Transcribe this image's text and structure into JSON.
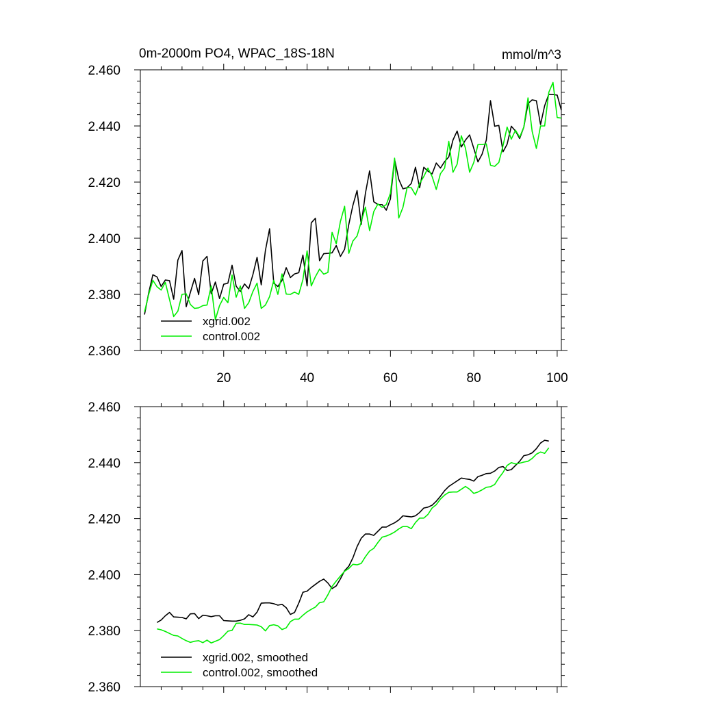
{
  "chart_data": [
    {
      "type": "line",
      "title": "0m-2000m PO4, WPAC_18S-18N",
      "units": "mmol/m^3",
      "xlabel": "",
      "ylabel": "",
      "xlim": [
        0,
        101
      ],
      "ylim": [
        2.36,
        2.46
      ],
      "xticks": [
        20,
        40,
        60,
        80,
        100
      ],
      "yticks": [
        2.36,
        2.38,
        2.4,
        2.42,
        2.44,
        2.46
      ],
      "ytick_labels": [
        "2.360",
        "2.380",
        "2.400",
        "2.420",
        "2.440",
        "2.460"
      ],
      "show_xtick_labels": true,
      "grid": false,
      "legend": "bottom-left",
      "series": [
        {
          "name": "xgrid.002",
          "color": "#000000",
          "x": [
            1,
            2,
            3,
            4,
            5,
            6,
            7,
            8,
            9,
            10,
            11,
            12,
            13,
            14,
            15,
            16,
            17,
            18,
            19,
            20,
            21,
            22,
            23,
            24,
            25,
            26,
            27,
            28,
            29,
            30,
            31,
            32,
            33,
            34,
            35,
            36,
            37,
            38,
            39,
            40,
            41,
            42,
            43,
            44,
            45,
            46,
            47,
            48,
            49,
            50,
            51,
            52,
            53,
            54,
            55,
            56,
            57,
            58,
            59,
            60,
            61,
            62,
            63,
            64,
            65,
            66,
            67,
            68,
            69,
            70,
            71,
            72,
            73,
            74,
            75,
            76,
            77,
            78,
            79,
            80,
            81,
            82,
            83,
            84,
            85,
            86,
            87,
            88,
            89,
            90,
            91,
            92,
            93,
            94,
            95,
            96,
            97,
            98,
            99,
            100,
            101
          ],
          "values": [
            2.3728,
            2.3805,
            2.387,
            2.3862,
            2.3828,
            2.3851,
            2.3849,
            2.3783,
            2.3922,
            2.3956,
            2.3756,
            2.3807,
            2.3857,
            2.3799,
            2.3919,
            2.3935,
            2.3802,
            2.3844,
            2.3785,
            2.3836,
            2.384,
            2.3904,
            2.3829,
            2.381,
            2.3837,
            2.382,
            2.387,
            2.3932,
            2.3834,
            2.3956,
            2.4034,
            2.384,
            2.3828,
            2.385,
            2.3895,
            2.386,
            2.3873,
            2.3877,
            2.394,
            2.383,
            2.4055,
            2.4071,
            2.392,
            2.3945,
            2.3946,
            2.3948,
            2.3974,
            2.3935,
            2.3961,
            2.4049,
            2.4117,
            2.417,
            2.4049,
            2.416,
            2.424,
            2.413,
            2.412,
            2.412,
            2.41,
            2.414,
            2.4281,
            2.421,
            2.4176,
            2.418,
            2.4195,
            2.4253,
            2.418,
            2.4253,
            2.4239,
            2.4229,
            2.4268,
            2.425,
            2.4273,
            2.429,
            2.435,
            2.4382,
            2.4325,
            2.435,
            2.4368,
            2.432,
            2.4272,
            2.43,
            2.435,
            2.449,
            2.4399,
            2.4402,
            2.4308,
            2.4335,
            2.4399,
            2.4382,
            2.4355,
            2.4396,
            2.448,
            2.4493,
            2.449,
            2.4405,
            2.4472,
            2.4513,
            2.4512,
            2.451,
            2.4456
          ]
        },
        {
          "name": "control.002",
          "color": "#00ee00",
          "x": [
            1,
            2,
            3,
            4,
            5,
            6,
            7,
            8,
            9,
            10,
            11,
            12,
            13,
            14,
            15,
            16,
            17,
            18,
            19,
            20,
            21,
            22,
            23,
            24,
            25,
            26,
            27,
            28,
            29,
            30,
            31,
            32,
            33,
            34,
            35,
            36,
            37,
            38,
            39,
            40,
            41,
            42,
            43,
            44,
            45,
            46,
            47,
            48,
            49,
            50,
            51,
            52,
            53,
            54,
            55,
            56,
            57,
            58,
            59,
            60,
            61,
            62,
            63,
            64,
            65,
            66,
            67,
            68,
            69,
            70,
            71,
            72,
            73,
            74,
            75,
            76,
            77,
            78,
            79,
            80,
            81,
            82,
            83,
            84,
            85,
            86,
            87,
            88,
            89,
            90,
            91,
            92,
            93,
            94,
            95,
            96,
            97,
            98,
            99,
            100,
            101
          ],
          "values": [
            2.3737,
            2.38,
            2.385,
            2.3827,
            2.3815,
            2.3843,
            2.3782,
            2.3721,
            2.374,
            2.38,
            2.3802,
            2.3764,
            2.375,
            2.3752,
            2.376,
            2.3762,
            2.383,
            2.371,
            2.376,
            2.3789,
            2.377,
            2.3869,
            2.379,
            2.383,
            2.375,
            2.377,
            2.381,
            2.384,
            2.375,
            2.3762,
            2.3792,
            2.385,
            2.38,
            2.3873,
            2.3801,
            2.38,
            2.3808,
            2.38,
            2.3853,
            2.3955,
            2.383,
            2.3863,
            2.389,
            2.3872,
            2.3878,
            2.4021,
            2.398,
            2.406,
            2.4114,
            2.3946,
            2.399,
            2.4008,
            2.4059,
            2.4111,
            2.4027,
            2.4095,
            2.4122,
            2.411,
            2.412,
            2.416,
            2.4285,
            2.4072,
            2.411,
            2.418,
            2.418,
            2.4154,
            2.4195,
            2.422,
            2.425,
            2.422,
            2.4174,
            2.423,
            2.425,
            2.4345,
            2.4235,
            2.4264,
            2.4365,
            2.432,
            2.4235,
            2.427,
            2.4334,
            2.4334,
            2.4336,
            2.426,
            2.4256,
            2.427,
            2.433,
            2.4396,
            2.4353,
            2.4385,
            2.436,
            2.4396,
            2.45,
            2.438,
            2.432,
            2.44,
            2.44,
            2.452,
            2.4555,
            2.443,
            2.4428
          ]
        }
      ]
    },
    {
      "type": "line",
      "title": "",
      "xlabel": "",
      "ylabel": "",
      "xlim": [
        0,
        101
      ],
      "ylim": [
        2.36,
        2.46
      ],
      "xticks": [
        20,
        40,
        60,
        80,
        100
      ],
      "yticks": [
        2.36,
        2.38,
        2.4,
        2.42,
        2.44,
        2.46
      ],
      "ytick_labels": [
        "2.360",
        "2.380",
        "2.400",
        "2.420",
        "2.440",
        "2.460"
      ],
      "show_xtick_labels": false,
      "grid": false,
      "legend": "bottom-left",
      "series": [
        {
          "name": "xgrid.002, smoothed",
          "color": "#000000",
          "x": [
            4,
            5,
            6,
            7,
            8,
            9,
            10,
            11,
            12,
            13,
            14,
            15,
            16,
            17,
            18,
            19,
            20,
            21,
            22,
            23,
            24,
            25,
            26,
            27,
            28,
            29,
            30,
            31,
            32,
            33,
            34,
            35,
            36,
            37,
            38,
            39,
            40,
            41,
            42,
            43,
            44,
            45,
            46,
            47,
            48,
            49,
            50,
            51,
            52,
            53,
            54,
            55,
            56,
            57,
            58,
            59,
            60,
            61,
            62,
            63,
            64,
            65,
            66,
            67,
            68,
            69,
            70,
            71,
            72,
            73,
            74,
            75,
            76,
            77,
            78,
            79,
            80,
            81,
            82,
            83,
            84,
            85,
            86,
            87,
            88,
            89,
            90,
            91,
            92,
            93,
            94,
            95,
            96,
            97,
            98
          ],
          "values": [
            2.3829,
            2.3838,
            2.3853,
            2.3865,
            2.3849,
            2.3848,
            2.3847,
            2.3842,
            2.386,
            2.3861,
            2.3843,
            2.3855,
            2.3853,
            2.385,
            2.3853,
            2.3853,
            2.3836,
            2.3835,
            2.3834,
            2.3834,
            2.3837,
            2.3842,
            2.3857,
            2.3849,
            2.3866,
            2.3898,
            2.3899,
            2.3899,
            2.3896,
            2.3891,
            2.3894,
            2.3882,
            2.3858,
            2.3865,
            2.3898,
            2.3937,
            2.3941,
            2.3954,
            2.3965,
            2.3976,
            2.3984,
            2.397,
            2.395,
            2.396,
            2.3985,
            2.4014,
            2.403,
            2.406,
            2.41,
            2.413,
            2.4145,
            2.4145,
            2.414,
            2.4155,
            2.417,
            2.417,
            2.4178,
            2.4185,
            2.4195,
            2.421,
            2.4208,
            2.4206,
            2.421,
            2.4222,
            2.4238,
            2.4241,
            2.4248,
            2.4262,
            2.428,
            2.43,
            2.4315,
            2.4325,
            2.4335,
            2.4345,
            2.4342,
            2.434,
            2.4334,
            2.435,
            2.4355,
            2.4361,
            2.4362,
            2.437,
            2.4383,
            2.4386,
            2.4372,
            2.4375,
            2.439,
            2.4405,
            2.4425,
            2.4428,
            2.4435,
            2.445,
            2.447,
            2.448,
            2.4477
          ]
        },
        {
          "name": "control.002, smoothed",
          "color": "#00ee00",
          "x": [
            4,
            5,
            6,
            7,
            8,
            9,
            10,
            11,
            12,
            13,
            14,
            15,
            16,
            17,
            18,
            19,
            20,
            21,
            22,
            23,
            24,
            25,
            26,
            27,
            28,
            29,
            30,
            31,
            32,
            33,
            34,
            35,
            36,
            37,
            38,
            39,
            40,
            41,
            42,
            43,
            44,
            45,
            46,
            47,
            48,
            49,
            50,
            51,
            52,
            53,
            54,
            55,
            56,
            57,
            58,
            59,
            60,
            61,
            62,
            63,
            64,
            65,
            66,
            67,
            68,
            69,
            70,
            71,
            72,
            73,
            74,
            75,
            76,
            77,
            78,
            79,
            80,
            81,
            82,
            83,
            84,
            85,
            86,
            87,
            88,
            89,
            90,
            91,
            92,
            93,
            94,
            95,
            96,
            97,
            98
          ],
          "values": [
            2.3806,
            2.3803,
            2.3797,
            2.379,
            2.3783,
            2.3781,
            2.3772,
            2.3764,
            2.3758,
            2.3762,
            2.3764,
            2.3757,
            2.3766,
            2.3756,
            2.3762,
            2.3768,
            2.3782,
            2.3798,
            2.3801,
            2.3826,
            2.3827,
            2.3822,
            2.3822,
            2.3821,
            2.382,
            2.3814,
            2.3799,
            2.3818,
            2.3821,
            2.3817,
            2.3804,
            2.381,
            2.3832,
            2.3841,
            2.3841,
            2.3855,
            2.3867,
            2.3876,
            2.3884,
            2.39,
            2.3903,
            2.3928,
            2.3958,
            2.3977,
            2.3995,
            2.4012,
            2.4022,
            2.4037,
            2.4035,
            2.404,
            2.4064,
            2.4084,
            2.4094,
            2.4115,
            2.4134,
            2.4138,
            2.4144,
            2.4152,
            2.4163,
            2.4172,
            2.4172,
            2.4164,
            2.4186,
            2.4202,
            2.4202,
            2.4215,
            2.4238,
            2.425,
            2.427,
            2.4284,
            2.4294,
            2.4295,
            2.4295,
            2.4305,
            2.4315,
            2.4305,
            2.429,
            2.4295,
            2.4303,
            2.4312,
            2.4314,
            2.4322,
            2.4345,
            2.4365,
            2.439,
            2.44,
            2.4395,
            2.4398,
            2.4402,
            2.4405,
            2.4415,
            2.443,
            2.4438,
            2.4433,
            2.4453
          ]
        }
      ]
    }
  ]
}
